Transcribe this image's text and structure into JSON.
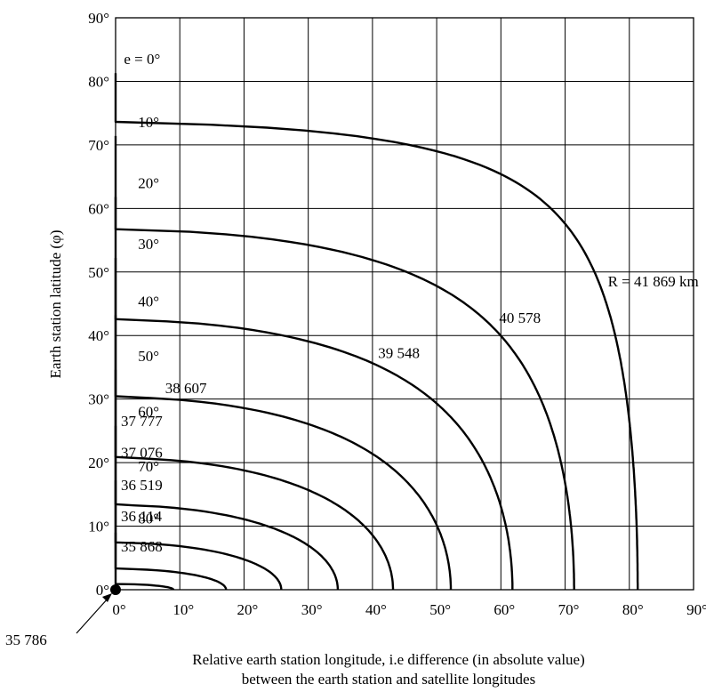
{
  "chart_data": {
    "type": "line",
    "xlabel_line1": "Relative earth station longitude, i.e difference (in absolute value)",
    "xlabel_line2": "between the earth station and satellite longitudes",
    "ylabel": "Earth station latitude (φ)",
    "xlim": [
      0,
      90
    ],
    "ylim": [
      0,
      90
    ],
    "x_ticks": [
      {
        "value": 0,
        "label": "0°"
      },
      {
        "value": 10,
        "label": "10°"
      },
      {
        "value": 20,
        "label": "20°"
      },
      {
        "value": 30,
        "label": "30°"
      },
      {
        "value": 40,
        "label": "40°"
      },
      {
        "value": 50,
        "label": "50°"
      },
      {
        "value": 60,
        "label": "60°"
      },
      {
        "value": 70,
        "label": "70°"
      },
      {
        "value": 80,
        "label": "80°"
      },
      {
        "value": 90,
        "label": "90°"
      }
    ],
    "y_ticks": [
      {
        "value": 0,
        "label": "0°"
      },
      {
        "value": 10,
        "label": "10°"
      },
      {
        "value": 20,
        "label": "20°"
      },
      {
        "value": 30,
        "label": "30°"
      },
      {
        "value": 40,
        "label": "40°"
      },
      {
        "value": 50,
        "label": "50°"
      },
      {
        "value": 60,
        "label": "60°"
      },
      {
        "value": 70,
        "label": "70°"
      },
      {
        "value": 80,
        "label": "80°"
      },
      {
        "value": 90,
        "label": "90°"
      }
    ],
    "grid": true,
    "series": [
      {
        "elevation": 0,
        "elevation_label": "e = 0°",
        "range_label": "R = 41 869 km",
        "intercept": 81.3
      },
      {
        "elevation": 10,
        "elevation_label": "10°",
        "range_label": "40 578",
        "intercept": 71.4
      },
      {
        "elevation": 20,
        "elevation_label": "20°",
        "range_label": "39 548",
        "intercept": 61.8
      },
      {
        "elevation": 30,
        "elevation_label": "30°",
        "range_label": "38 607",
        "intercept": 52.2
      },
      {
        "elevation": 40,
        "elevation_label": "40°",
        "range_label": "37 777",
        "intercept": 43.2
      },
      {
        "elevation": 50,
        "elevation_label": "50°",
        "range_label": "37 076",
        "intercept": 34.6
      },
      {
        "elevation": 60,
        "elevation_label": "60°",
        "range_label": "36 519",
        "intercept": 25.8
      },
      {
        "elevation": 70,
        "elevation_label": "70°",
        "range_label": "36 114",
        "intercept": 17.2
      },
      {
        "elevation": 80,
        "elevation_label": "80°",
        "range_label": "35 868",
        "intercept": 9.0
      }
    ],
    "origin_point": {
      "x": 0,
      "y": 0,
      "label": "35 786"
    }
  }
}
